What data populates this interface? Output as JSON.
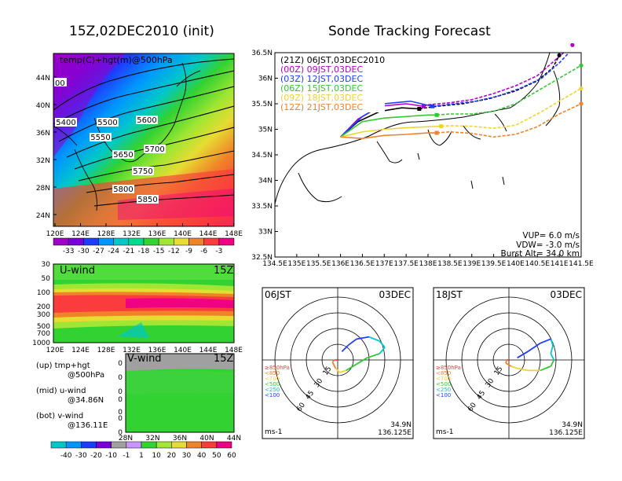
{
  "titles": {
    "left": "15Z,02DEC2010 (init)",
    "right": "Sonde Tracking Forecast"
  },
  "map500": {
    "label": "temp(C)+hgt(m)@500hPa",
    "lat_ticks": [
      "44N",
      "40N",
      "36N",
      "32N",
      "28N",
      "24N"
    ],
    "lon_ticks": [
      "120E",
      "124E",
      "128E",
      "132E",
      "136E",
      "140E",
      "144E",
      "148E"
    ],
    "contour_labels": [
      "5400",
      "5500",
      "5550",
      "5600",
      "5650",
      "5700",
      "5750",
      "5800",
      "5850"
    ],
    "edge_label": "00",
    "colorbar_ticks": [
      "-33",
      "-30",
      "-27",
      "-24",
      "-21",
      "-18",
      "-15",
      "-12",
      "-9",
      "-6",
      "-3"
    ],
    "colorbar_colors": [
      "#a000c8",
      "#7800dc",
      "#1e3cff",
      "#0096ff",
      "#00c8c8",
      "#00dc8c",
      "#32d232",
      "#a0e632",
      "#e6dc32",
      "#f08228",
      "#fa3c3c",
      "#f00082"
    ]
  },
  "uwind": {
    "label": "U-wind",
    "time": "15Z",
    "p_ticks": [
      "30",
      "50",
      "100",
      "200",
      "300",
      "500",
      "700",
      "1000"
    ],
    "lon_ticks": [
      "120E",
      "124E",
      "128E",
      "132E",
      "136E",
      "140E",
      "144E",
      "148E"
    ]
  },
  "vwind": {
    "label": "V-wind",
    "time": "15Z",
    "p_ticks": [
      "50",
      "100",
      "200",
      "300",
      "500",
      "700",
      "1000"
    ],
    "lat_ticks": [
      "28N",
      "32N",
      "36N",
      "40N",
      "44N"
    ]
  },
  "notes": [
    {
      "a": "(up) tmp+hgt",
      "b": "@500hPa"
    },
    {
      "a": "(mid) u-wind",
      "b": "@34.86N"
    },
    {
      "a": "(bot) v-wind",
      "b": "@136.11E"
    }
  ],
  "wind_colorbar": {
    "ticks": [
      "-40",
      "-30",
      "-20",
      "-10",
      "-1",
      "1",
      "10",
      "20",
      "30",
      "40",
      "50",
      "60"
    ],
    "colors": [
      "#00c8c8",
      "#0096ff",
      "#1e3cff",
      "#7800dc",
      "#a0a0a0",
      "#c896ff",
      "#32d232",
      "#a0e632",
      "#e6dc32",
      "#f08228",
      "#fa3c3c",
      "#f00082"
    ]
  },
  "chart_data": [
    {
      "type": "line",
      "title": "Sonde Tracking Forecast",
      "xlim": [
        134.5,
        141.5
      ],
      "ylim": [
        32.5,
        36.5
      ],
      "x_ticks": [
        "134.5E",
        "135E",
        "135.5E",
        "136E",
        "136.5E",
        "137E",
        "137.5E",
        "138E",
        "138.5E",
        "139E",
        "139.5E",
        "140E",
        "140.5E",
        "141E",
        "141.5E"
      ],
      "y_ticks": [
        "36.5N",
        "36N",
        "35.5N",
        "35N",
        "34.5N",
        "34N",
        "33.5N",
        "33N",
        "32.5N"
      ],
      "series": [
        {
          "name": "(21Z) 06JST,03DEC2010",
          "color": "#000000",
          "lon": [
            136.0,
            136.4,
            136.9,
            137.4,
            137.8,
            138.2,
            138.8,
            139.4,
            140.0,
            140.5,
            140.85,
            141.0
          ],
          "lat": [
            34.85,
            35.15,
            35.35,
            35.42,
            35.4,
            35.45,
            35.5,
            35.6,
            35.75,
            35.95,
            36.2,
            36.45
          ],
          "marker": [
            137.8,
            35.4
          ],
          "end": [
            141.0,
            36.45
          ]
        },
        {
          "name": "(00Z) 09JST,03DEC",
          "color": "#b400c8",
          "lon": [
            136.0,
            136.4,
            136.9,
            137.5,
            138.0,
            138.5,
            139.0,
            139.5,
            140.0,
            140.5,
            140.9,
            141.3
          ],
          "lat": [
            34.85,
            35.2,
            35.45,
            35.5,
            35.48,
            35.52,
            35.58,
            35.7,
            35.85,
            36.05,
            36.35,
            36.65
          ],
          "marker": [
            137.9,
            35.45
          ],
          "end": [
            141.3,
            36.65
          ]
        },
        {
          "name": "(03Z) 12JST,03DEC",
          "color": "#1e3cff",
          "lon": [
            136.0,
            136.5,
            137.0,
            137.6,
            138.1,
            138.6,
            139.1,
            139.6,
            140.1,
            140.6,
            141.0,
            141.5
          ],
          "lat": [
            34.85,
            35.25,
            35.5,
            35.55,
            35.45,
            35.5,
            35.55,
            35.65,
            35.8,
            36.0,
            36.3,
            36.75
          ],
          "marker": [
            138.1,
            35.45
          ],
          "end": [
            141.5,
            36.75
          ]
        },
        {
          "name": "(06Z) 15JST,03DEC",
          "color": "#32c832",
          "lon": [
            136.0,
            136.5,
            137.0,
            137.5,
            138.0,
            138.5,
            139.0,
            139.5,
            140.0,
            140.5,
            141.0,
            141.5
          ],
          "lat": [
            34.85,
            35.15,
            35.22,
            35.25,
            35.28,
            35.3,
            35.3,
            35.35,
            35.5,
            35.75,
            36.0,
            36.25
          ],
          "marker": [
            138.2,
            35.28
          ],
          "end": [
            141.5,
            36.25
          ]
        },
        {
          "name": "(09Z) 18JST,03DEC",
          "color": "#f0d232",
          "lon": [
            136.0,
            136.5,
            137.0,
            137.5,
            138.0,
            138.5,
            139.0,
            139.5,
            140.0,
            140.5,
            141.0,
            141.5
          ],
          "lat": [
            34.85,
            34.95,
            35.0,
            35.03,
            35.05,
            35.07,
            35.06,
            35.02,
            35.08,
            35.3,
            35.55,
            35.8
          ],
          "marker": [
            138.3,
            35.06
          ],
          "end": [
            141.5,
            35.8
          ]
        },
        {
          "name": "(12Z) 21JST,03DEC",
          "color": "#f08228",
          "lon": [
            136.0,
            136.5,
            137.0,
            137.5,
            138.0,
            138.5,
            139.0,
            139.5,
            140.0,
            140.5,
            141.0,
            141.5
          ],
          "lat": [
            34.85,
            34.82,
            34.88,
            34.9,
            34.93,
            34.95,
            34.92,
            34.85,
            34.9,
            35.05,
            35.3,
            35.5
          ],
          "marker": [
            138.2,
            34.93
          ],
          "end": [
            141.5,
            35.5
          ]
        }
      ],
      "info": [
        "VUP= 6.0 m/s",
        "VDW= -3.0 m/s",
        "Burst Alt= 34.0 km"
      ]
    },
    {
      "type": "line",
      "title": "06JST 03DEC",
      "left_label": "06JST",
      "right_label": "03DEC",
      "ring_labels": [
        "15",
        "30",
        "45",
        "60"
      ],
      "legend": [
        "≥850hPa",
        "<850",
        "<700",
        "<500",
        "<250",
        "<100"
      ],
      "legend_colors": [
        "#fa3c3c",
        "#f08228",
        "#f0d232",
        "#32c832",
        "#00c8c8",
        "#1e3cff"
      ],
      "unit": "ms-1",
      "location": [
        "34.9N",
        "136.125E"
      ],
      "u": [
        0,
        -3,
        -5,
        -2,
        2,
        8,
        18,
        28,
        40,
        45,
        40,
        30,
        18,
        10,
        4
      ],
      "v": [
        0,
        0,
        -2,
        -8,
        -12,
        -10,
        -4,
        2,
        6,
        12,
        18,
        22,
        20,
        14,
        8
      ],
      "colors": [
        "#fa3c3c",
        "#fa3c3c",
        "#f08228",
        "#f08228",
        "#f0d232",
        "#f0d232",
        "#32c832",
        "#32c832",
        "#32c832",
        "#00c8c8",
        "#00c8c8",
        "#00c8c8",
        "#1e3cff",
        "#1e3cff",
        "#1e3cff"
      ]
    },
    {
      "type": "line",
      "title": "18JST 03DEC",
      "left_label": "18JST",
      "right_label": "03DEC",
      "ring_labels": [
        "15",
        "30",
        "45",
        "60"
      ],
      "legend": [
        "≥850hPa",
        "<850",
        "<700",
        "<500",
        "<250",
        "<100"
      ],
      "legend_colors": [
        "#fa3c3c",
        "#f08228",
        "#f0d232",
        "#32c832",
        "#00c8c8",
        "#1e3cff"
      ],
      "unit": "ms-1",
      "location": [
        "34.9N",
        "136.125E"
      ],
      "u": [
        0,
        -2,
        -3,
        2,
        8,
        18,
        30,
        40,
        43,
        40,
        42,
        40,
        30,
        18,
        8
      ],
      "v": [
        0,
        0,
        -3,
        -6,
        -8,
        -10,
        -10,
        -6,
        0,
        6,
        14,
        20,
        16,
        8,
        2
      ],
      "colors": [
        "#fa3c3c",
        "#fa3c3c",
        "#f08228",
        "#f08228",
        "#f0d232",
        "#f0d232",
        "#f0d232",
        "#32c832",
        "#32c832",
        "#00c8c8",
        "#00c8c8",
        "#00c8c8",
        "#1e3cff",
        "#1e3cff",
        "#1e3cff"
      ]
    }
  ]
}
